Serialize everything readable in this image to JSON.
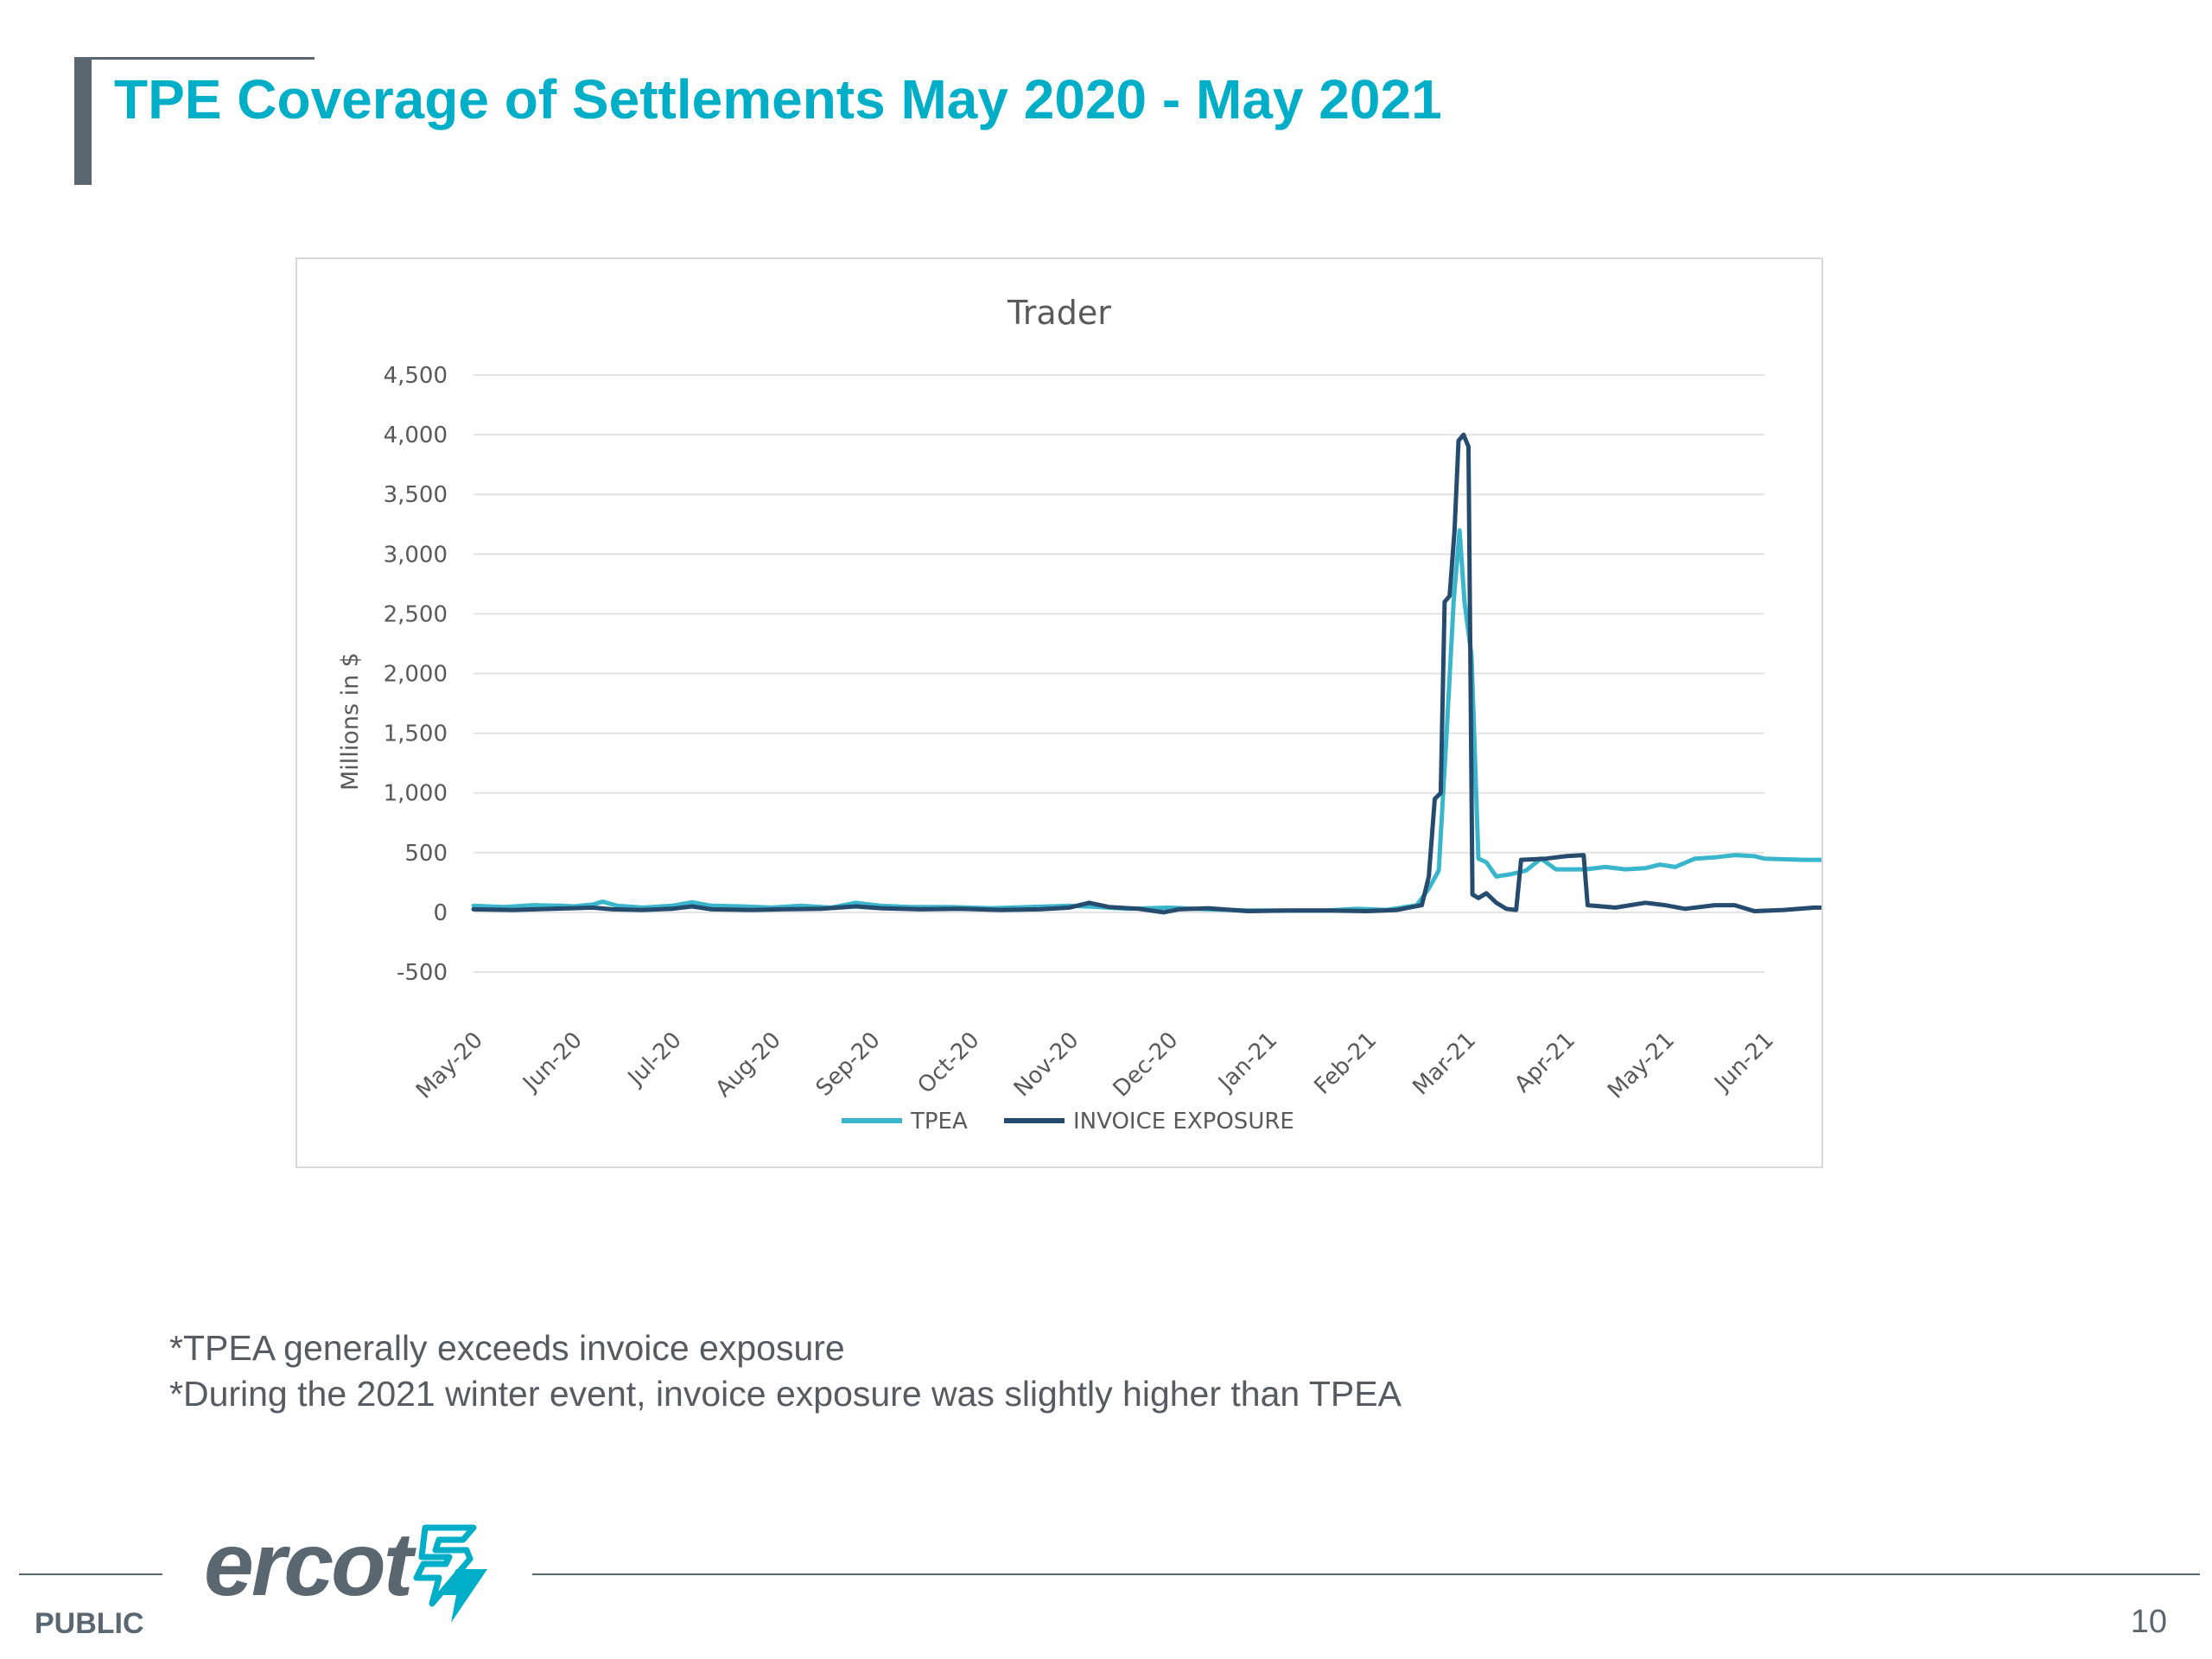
{
  "slide": {
    "title": "TPE Coverage of Settlements May 2020 - May 2021",
    "notes": [
      "*TPEA generally exceeds invoice exposure",
      "*During the 2021 winter event, invoice exposure was slightly higher than TPEA"
    ],
    "footer": {
      "classification": "PUBLIC",
      "page_number": "10",
      "logo_text": "ercot"
    }
  },
  "chart_data": {
    "type": "line",
    "title": "Trader",
    "ylabel": "Millions in $",
    "xlabel": "",
    "ylim": [
      -500,
      4500
    ],
    "yticks": [
      -500,
      0,
      500,
      1000,
      1500,
      2000,
      2500,
      3000,
      3500,
      4000,
      4500
    ],
    "ytick_labels": [
      "-500",
      "0",
      "500",
      "1,000",
      "1,500",
      "2,000",
      "2,500",
      "3,000",
      "3,500",
      "4,000",
      "4,500"
    ],
    "xtick_labels": [
      "May-20",
      "Jun-20",
      "Jul-20",
      "Aug-20",
      "Sep-20",
      "Oct-20",
      "Nov-20",
      "Dec-20",
      "Jan-21",
      "Feb-21",
      "Mar-21",
      "Apr-21",
      "May-21",
      "Jun-21"
    ],
    "x_unit": "months since May-20 (0 = May-20, 13 = Jun-21)",
    "grid": true,
    "legend_position": "bottom",
    "series": [
      {
        "name": "TPEA",
        "color": "#3ab6cc",
        "points": [
          [
            0,
            55
          ],
          [
            0.3,
            45
          ],
          [
            0.6,
            60
          ],
          [
            0.9,
            55
          ],
          [
            1.0,
            50
          ],
          [
            1.2,
            65
          ],
          [
            1.3,
            90
          ],
          [
            1.45,
            55
          ],
          [
            1.7,
            40
          ],
          [
            2.0,
            55
          ],
          [
            2.2,
            85
          ],
          [
            2.4,
            55
          ],
          [
            2.7,
            50
          ],
          [
            3.0,
            40
          ],
          [
            3.3,
            55
          ],
          [
            3.6,
            40
          ],
          [
            3.85,
            80
          ],
          [
            4.1,
            55
          ],
          [
            4.4,
            45
          ],
          [
            4.8,
            45
          ],
          [
            5.2,
            35
          ],
          [
            5.6,
            45
          ],
          [
            6.0,
            55
          ],
          [
            6.3,
            45
          ],
          [
            6.6,
            30
          ],
          [
            7.0,
            40
          ],
          [
            7.4,
            25
          ],
          [
            7.8,
            15
          ],
          [
            8.2,
            15
          ],
          [
            8.6,
            15
          ],
          [
            8.9,
            30
          ],
          [
            9.2,
            20
          ],
          [
            9.5,
            60
          ],
          [
            9.62,
            200
          ],
          [
            9.72,
            350
          ],
          [
            9.8,
            1500
          ],
          [
            9.87,
            2600
          ],
          [
            9.93,
            3200
          ],
          [
            9.98,
            2600
          ],
          [
            10.05,
            2150
          ],
          [
            10.12,
            450
          ],
          [
            10.2,
            420
          ],
          [
            10.3,
            300
          ],
          [
            10.45,
            320
          ],
          [
            10.6,
            350
          ],
          [
            10.75,
            450
          ],
          [
            10.9,
            360
          ],
          [
            11.2,
            360
          ],
          [
            11.4,
            380
          ],
          [
            11.6,
            360
          ],
          [
            11.8,
            370
          ],
          [
            11.95,
            400
          ],
          [
            12.1,
            380
          ],
          [
            12.3,
            450
          ],
          [
            12.5,
            460
          ],
          [
            12.7,
            480
          ],
          [
            12.9,
            470
          ],
          [
            13.0,
            450
          ],
          [
            13.4,
            440
          ],
          [
            13.7,
            440
          ]
        ]
      },
      {
        "name": "INVOICE EXPOSURE",
        "color": "#254b6e",
        "points": [
          [
            0,
            25
          ],
          [
            0.4,
            20
          ],
          [
            0.8,
            30
          ],
          [
            1.0,
            35
          ],
          [
            1.2,
            40
          ],
          [
            1.4,
            25
          ],
          [
            1.7,
            20
          ],
          [
            2.0,
            30
          ],
          [
            2.2,
            50
          ],
          [
            2.4,
            25
          ],
          [
            2.8,
            20
          ],
          [
            3.1,
            25
          ],
          [
            3.5,
            30
          ],
          [
            3.85,
            50
          ],
          [
            4.1,
            35
          ],
          [
            4.5,
            25
          ],
          [
            4.9,
            30
          ],
          [
            5.3,
            20
          ],
          [
            5.7,
            25
          ],
          [
            6.0,
            40
          ],
          [
            6.2,
            80
          ],
          [
            6.4,
            45
          ],
          [
            6.7,
            30
          ],
          [
            6.95,
            0
          ],
          [
            7.1,
            25
          ],
          [
            7.4,
            35
          ],
          [
            7.8,
            10
          ],
          [
            8.2,
            15
          ],
          [
            8.6,
            15
          ],
          [
            9.0,
            10
          ],
          [
            9.3,
            20
          ],
          [
            9.55,
            60
          ],
          [
            9.62,
            300
          ],
          [
            9.68,
            950
          ],
          [
            9.74,
            1000
          ],
          [
            9.78,
            2600
          ],
          [
            9.83,
            2650
          ],
          [
            9.88,
            3200
          ],
          [
            9.92,
            3950
          ],
          [
            9.97,
            4000
          ],
          [
            10.02,
            3900
          ],
          [
            10.06,
            150
          ],
          [
            10.12,
            120
          ],
          [
            10.2,
            160
          ],
          [
            10.3,
            80
          ],
          [
            10.4,
            30
          ],
          [
            10.5,
            20
          ],
          [
            10.55,
            440
          ],
          [
            10.8,
            450
          ],
          [
            11.0,
            470
          ],
          [
            11.18,
            480
          ],
          [
            11.22,
            60
          ],
          [
            11.5,
            40
          ],
          [
            11.8,
            80
          ],
          [
            12.0,
            60
          ],
          [
            12.2,
            30
          ],
          [
            12.5,
            60
          ],
          [
            12.7,
            60
          ],
          [
            12.9,
            10
          ],
          [
            13.2,
            20
          ],
          [
            13.5,
            40
          ],
          [
            13.7,
            40
          ]
        ]
      }
    ]
  }
}
